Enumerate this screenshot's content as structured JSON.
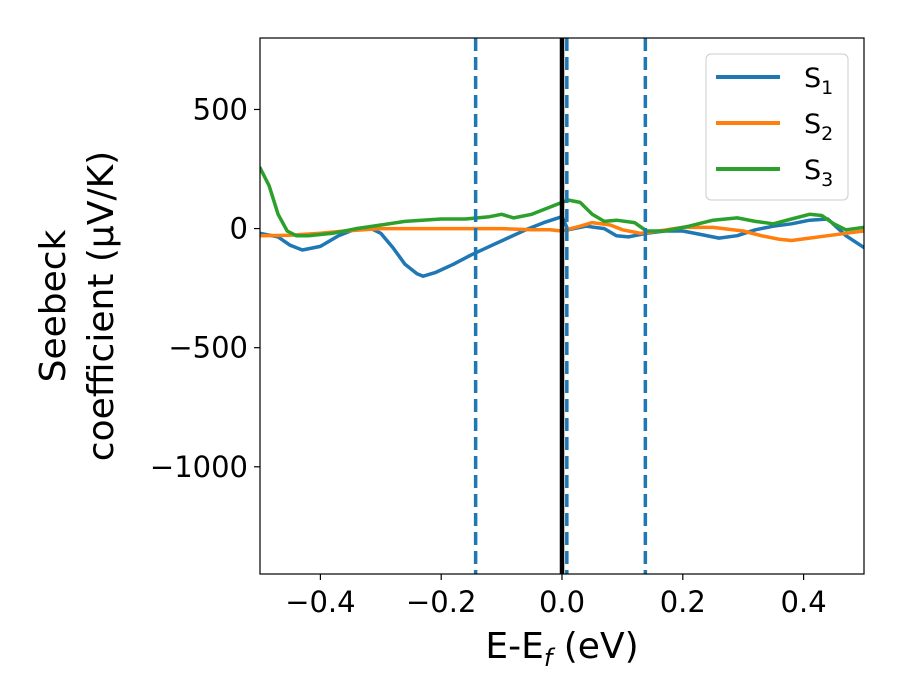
{
  "chart_data": {
    "type": "line",
    "xlabel": {
      "base": "E-E",
      "sub": "f",
      "tail": " (eV)"
    },
    "ylabel": {
      "line1": "Seebeck",
      "line2": "coefficient  (μV/K)"
    },
    "xlim": [
      -0.5,
      0.5
    ],
    "ylim": [
      -1450,
      800
    ],
    "xticks": [
      -0.4,
      -0.2,
      0.0,
      0.2,
      0.4
    ],
    "xtick_labels": [
      "−0.4",
      "−0.2",
      "0.0",
      "0.2",
      "0.4"
    ],
    "yticks": [
      500,
      0,
      -500,
      -1000
    ],
    "ytick_labels": [
      "500",
      "0",
      "−500",
      "−1000"
    ],
    "grid": false,
    "legend_position": "top-right",
    "vertical_lines": [
      {
        "x": -0.143,
        "style": "dashed",
        "color": "#1f77b4"
      },
      {
        "x": 0.0,
        "style": "solid",
        "color": "#000000"
      },
      {
        "x": 0.008,
        "style": "dashed",
        "color": "#1f77b4"
      },
      {
        "x": 0.138,
        "style": "dashed",
        "color": "#1f77b4"
      }
    ],
    "series": [
      {
        "name": "S",
        "sub": "1",
        "color": "#1f77b4",
        "points": [
          [
            -0.5,
            -20
          ],
          [
            -0.47,
            -35
          ],
          [
            -0.45,
            -70
          ],
          [
            -0.43,
            -90
          ],
          [
            -0.4,
            -75
          ],
          [
            -0.37,
            -30
          ],
          [
            -0.34,
            0
          ],
          [
            -0.32,
            5
          ],
          [
            -0.3,
            -20
          ],
          [
            -0.28,
            -80
          ],
          [
            -0.26,
            -150
          ],
          [
            -0.24,
            -190
          ],
          [
            -0.23,
            -200
          ],
          [
            -0.21,
            -185
          ],
          [
            -0.18,
            -150
          ],
          [
            -0.15,
            -110
          ],
          [
            -0.12,
            -75
          ],
          [
            -0.09,
            -40
          ],
          [
            -0.06,
            -5
          ],
          [
            -0.03,
            25
          ],
          [
            0.0,
            50
          ],
          [
            0.01,
            -5
          ],
          [
            0.04,
            10
          ],
          [
            0.07,
            0
          ],
          [
            0.09,
            -30
          ],
          [
            0.11,
            -35
          ],
          [
            0.14,
            -20
          ],
          [
            0.17,
            -10
          ],
          [
            0.2,
            -10
          ],
          [
            0.23,
            -25
          ],
          [
            0.26,
            -40
          ],
          [
            0.29,
            -30
          ],
          [
            0.32,
            -5
          ],
          [
            0.35,
            10
          ],
          [
            0.38,
            20
          ],
          [
            0.41,
            35
          ],
          [
            0.44,
            40
          ],
          [
            0.47,
            -30
          ],
          [
            0.5,
            -80
          ]
        ]
      },
      {
        "name": "S",
        "sub": "2",
        "color": "#ff7f0e",
        "points": [
          [
            -0.5,
            -30
          ],
          [
            -0.45,
            -28
          ],
          [
            -0.4,
            -20
          ],
          [
            -0.36,
            -10
          ],
          [
            -0.3,
            0
          ],
          [
            -0.2,
            0
          ],
          [
            -0.1,
            0
          ],
          [
            -0.05,
            -5
          ],
          [
            -0.02,
            -5
          ],
          [
            0.0,
            -10
          ],
          [
            0.03,
            10
          ],
          [
            0.05,
            25
          ],
          [
            0.08,
            15
          ],
          [
            0.1,
            -5
          ],
          [
            0.13,
            -20
          ],
          [
            0.16,
            -10
          ],
          [
            0.2,
            5
          ],
          [
            0.25,
            5
          ],
          [
            0.3,
            -10
          ],
          [
            0.33,
            -30
          ],
          [
            0.36,
            -45
          ],
          [
            0.38,
            -50
          ],
          [
            0.41,
            -40
          ],
          [
            0.44,
            -30
          ],
          [
            0.47,
            -20
          ],
          [
            0.5,
            -10
          ]
        ]
      },
      {
        "name": "S",
        "sub": "3",
        "color": "#2ca02c",
        "points": [
          [
            -0.5,
            255
          ],
          [
            -0.485,
            180
          ],
          [
            -0.47,
            60
          ],
          [
            -0.455,
            -10
          ],
          [
            -0.44,
            -30
          ],
          [
            -0.42,
            -30
          ],
          [
            -0.38,
            -20
          ],
          [
            -0.34,
            0
          ],
          [
            -0.3,
            15
          ],
          [
            -0.26,
            30
          ],
          [
            -0.2,
            40
          ],
          [
            -0.16,
            40
          ],
          [
            -0.12,
            50
          ],
          [
            -0.1,
            60
          ],
          [
            -0.08,
            45
          ],
          [
            -0.05,
            60
          ],
          [
            -0.02,
            90
          ],
          [
            0.0,
            110
          ],
          [
            0.01,
            120
          ],
          [
            0.03,
            110
          ],
          [
            0.05,
            60
          ],
          [
            0.07,
            30
          ],
          [
            0.09,
            35
          ],
          [
            0.12,
            25
          ],
          [
            0.14,
            -10
          ],
          [
            0.17,
            -10
          ],
          [
            0.21,
            10
          ],
          [
            0.25,
            35
          ],
          [
            0.29,
            45
          ],
          [
            0.32,
            30
          ],
          [
            0.35,
            20
          ],
          [
            0.38,
            40
          ],
          [
            0.41,
            60
          ],
          [
            0.43,
            55
          ],
          [
            0.45,
            20
          ],
          [
            0.47,
            -5
          ],
          [
            0.5,
            5
          ]
        ]
      }
    ]
  }
}
